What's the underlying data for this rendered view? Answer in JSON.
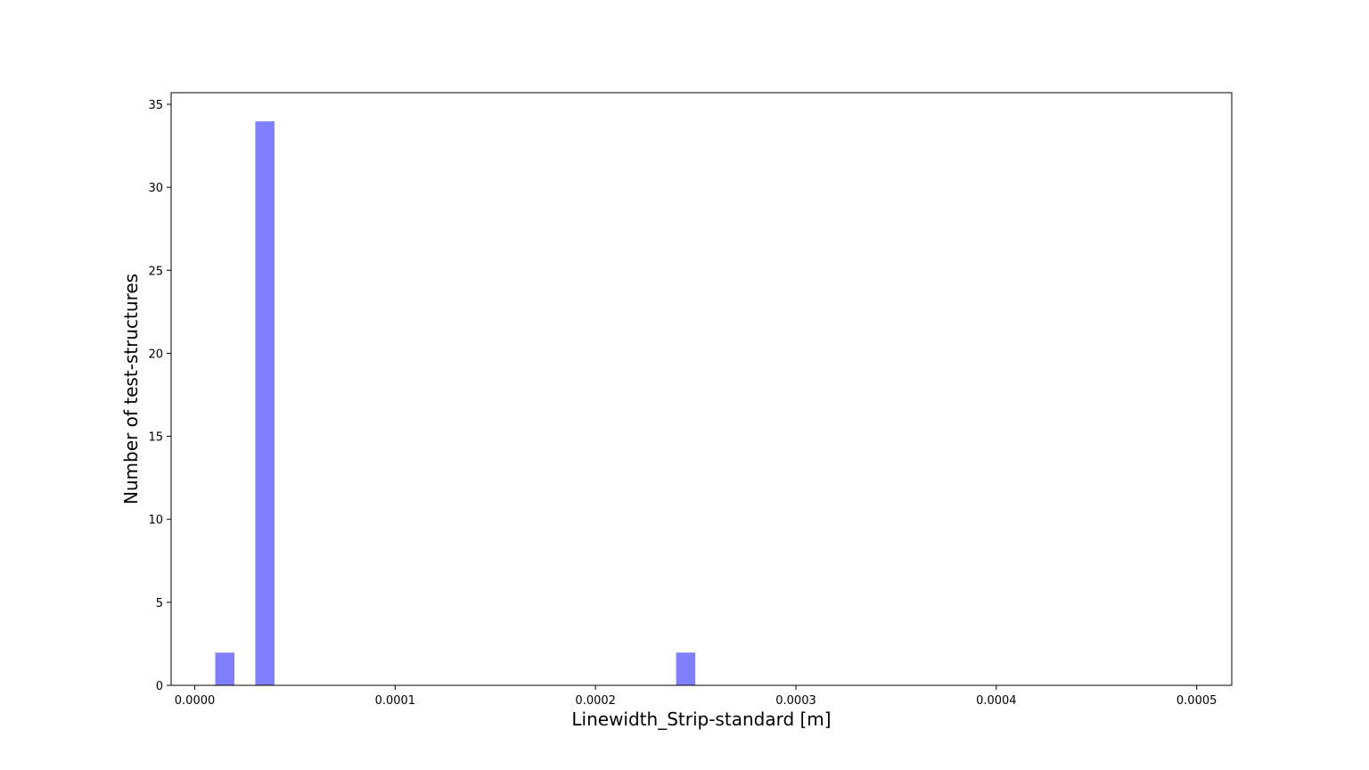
{
  "chart_data": {
    "type": "bar",
    "title": "",
    "xlabel": "Linewidth_Strip-standard [m]",
    "ylabel": "Number of test-structures",
    "xlim": [
      -1.18e-05,
      0.0005175
    ],
    "ylim": [
      0,
      35.7
    ],
    "grid": false,
    "bar_color": "#8080ff",
    "bar_edge_color": "#ffffff",
    "bin_width": 1e-05,
    "bars": [
      {
        "x_start": 1e-05,
        "x_end": 2e-05,
        "value": 2
      },
      {
        "x_start": 3e-05,
        "x_end": 4e-05,
        "value": 34
      },
      {
        "x_start": 0.00024,
        "x_end": 0.00025,
        "value": 2
      }
    ],
    "x_ticks": [
      {
        "value": 0.0,
        "label": "0.0000"
      },
      {
        "value": 0.0001,
        "label": "0.0001"
      },
      {
        "value": 0.0002,
        "label": "0.0002"
      },
      {
        "value": 0.0003,
        "label": "0.0003"
      },
      {
        "value": 0.0004,
        "label": "0.0004"
      },
      {
        "value": 0.0005,
        "label": "0.0005"
      }
    ],
    "y_ticks": [
      {
        "value": 0,
        "label": "0"
      },
      {
        "value": 5,
        "label": "5"
      },
      {
        "value": 10,
        "label": "10"
      },
      {
        "value": 15,
        "label": "15"
      },
      {
        "value": 20,
        "label": "20"
      },
      {
        "value": 25,
        "label": "25"
      },
      {
        "value": 30,
        "label": "30"
      },
      {
        "value": 35,
        "label": "35"
      }
    ]
  }
}
